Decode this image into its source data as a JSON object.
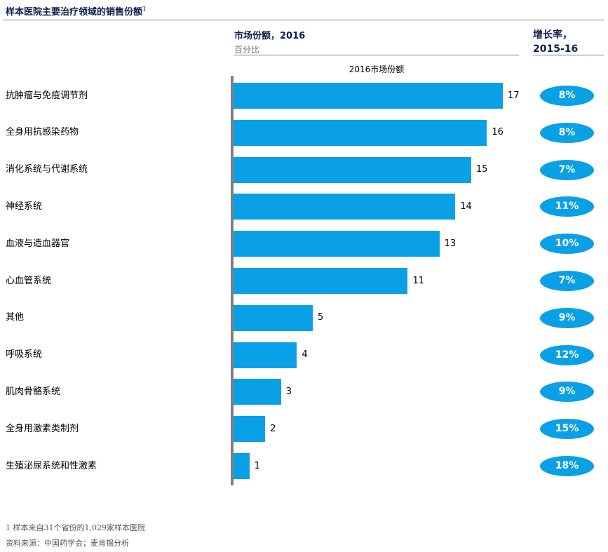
{
  "header": {
    "title": "样本医院主要治疗领域的销售份额",
    "title_sup": "1",
    "share_heading": "市场份额，2016",
    "share_subheading": "百分比",
    "growth_heading_line1": "增长率，",
    "growth_heading_line2": "2015-16",
    "series_label": "2016市场份额"
  },
  "colors": {
    "bar": "#0aa0e6",
    "heading": "#0b1f4d"
  },
  "chart_data": {
    "type": "bar",
    "orientation": "horizontal",
    "categories": [
      "抗肿瘤与免疫调节剂",
      "全身用抗感染药物",
      "消化系统与代谢系统",
      "神经系统",
      "血液与造血器官",
      "心血管系统",
      "其他",
      "呼吸系统",
      "肌肉骨骼系统",
      "全身用激素类制剂",
      "生殖泌尿系统和性激素"
    ],
    "series": [
      {
        "name": "2016市场份额",
        "values": [
          17,
          16,
          15,
          14,
          13,
          11,
          5,
          4,
          3,
          2,
          1
        ]
      }
    ],
    "growth": [
      "8%",
      "8%",
      "7%",
      "11%",
      "10%",
      "7%",
      "9%",
      "12%",
      "9%",
      "15%",
      "18%"
    ],
    "xlim": [
      0,
      17
    ],
    "grid": false,
    "legend": "none"
  },
  "footnotes": {
    "note1": "1 样本来自31个省份的1,029家样本医院",
    "source": "资料来源：中国药学会；麦肯锡分析"
  }
}
